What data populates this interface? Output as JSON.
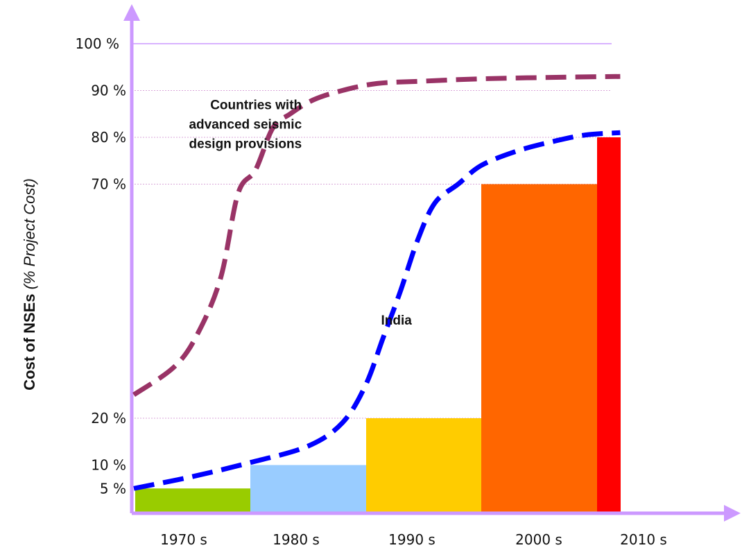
{
  "chart_data": {
    "type": "bar",
    "categories": [
      "1970 s",
      "1980 s",
      "1990 s",
      "2000 s",
      "2010 s"
    ],
    "values": [
      5,
      10,
      20,
      70,
      80
    ],
    "bar_colors": [
      "#99cc00",
      "#99ccff",
      "#ffcc00",
      "#ff6600",
      "#ff0000"
    ],
    "ylabel_bold": "Cost of NSEs",
    "ylabel_italic": "(% Project Cost)",
    "ylim": [
      0,
      100
    ],
    "y_ticks": [
      {
        "value": 5,
        "label": "5 %"
      },
      {
        "value": 10,
        "label": "10 %"
      },
      {
        "value": 20,
        "label": "20 %"
      },
      {
        "value": 70,
        "label": "70 %"
      },
      {
        "value": 80,
        "label": "80 %"
      },
      {
        "value": 90,
        "label": "90 %"
      },
      {
        "value": 100,
        "label": "100 %"
      }
    ],
    "grid": "horizontal dotted at labeled ticks",
    "axis_color": "#cc99ff",
    "series": [
      {
        "name": "Countries with advanced seismic design provisions",
        "style": "dashed",
        "color": "#993366",
        "x": [
          0.0,
          0.35,
          0.55,
          0.75,
          0.9,
          1.05,
          1.2,
          1.35,
          1.55,
          1.8,
          2.1,
          2.5,
          3.0,
          3.6,
          4.2
        ],
        "y": [
          25,
          31,
          38,
          50,
          68,
          73,
          82,
          85,
          88,
          90,
          91.5,
          92,
          92.5,
          92.8,
          93
        ]
      },
      {
        "name": "India",
        "style": "dashed",
        "color": "#0000ff",
        "x": [
          0.0,
          0.5,
          1.0,
          1.5,
          1.8,
          2.0,
          2.15,
          2.3,
          2.45,
          2.6,
          2.8,
          3.0,
          3.3,
          3.6,
          3.9,
          4.2
        ],
        "y": [
          5,
          7.5,
          10.5,
          14,
          19,
          27,
          37,
          47,
          58,
          66,
          70,
          74,
          77,
          79,
          80.5,
          81
        ]
      }
    ],
    "annotations": [
      {
        "text_lines": [
          "Countries with",
          "advanced seismic",
          "design provisions"
        ],
        "x": 1.45,
        "y": 86,
        "anchor": "end"
      },
      {
        "text_lines": [
          "India"
        ],
        "x": 2.4,
        "y": 40,
        "anchor": "end"
      }
    ]
  }
}
